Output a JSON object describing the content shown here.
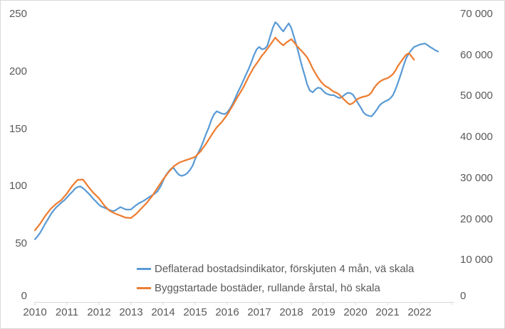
{
  "chart_data": {
    "type": "line",
    "title": "",
    "legend_position": "bottom",
    "grid": false,
    "x_axis": {
      "years": [
        2010,
        2011,
        2012,
        2013,
        2014,
        2015,
        2016,
        2017,
        2018,
        2019,
        2020,
        2021,
        2022
      ],
      "range": [
        2010,
        2023.1
      ]
    },
    "left_axis": {
      "range": [
        0,
        250
      ],
      "ticks": [
        {
          "value": 0,
          "label": "0"
        },
        {
          "value": 50,
          "label": "50"
        },
        {
          "value": 100,
          "label": "100"
        },
        {
          "value": 150,
          "label": "150"
        },
        {
          "value": 200,
          "label": "200"
        },
        {
          "value": 250,
          "label": "250"
        }
      ]
    },
    "right_axis": {
      "range": [
        0,
        70000
      ],
      "ticks": [
        {
          "value": 0,
          "label": "0"
        },
        {
          "value": 10000,
          "label": "10 000"
        },
        {
          "value": 20000,
          "label": "20 000"
        },
        {
          "value": 30000,
          "label": "30 000"
        },
        {
          "value": 40000,
          "label": "40 000"
        },
        {
          "value": 50000,
          "label": "50 000"
        },
        {
          "value": 60000,
          "label": "60 000"
        },
        {
          "value": 70000,
          "label": "70 000"
        }
      ]
    },
    "colors": {
      "blue_series": "#5B9BD5",
      "orange_series": "#ED7D31",
      "axis_line": "#D9D9D9",
      "text": "#595959"
    },
    "series": [
      {
        "name": "Deflaterad bostadsindikator, förskjuten 4 mån, vä skala",
        "axis": "left",
        "color": "#5B9BD5",
        "points": [
          [
            2010.0,
            54
          ],
          [
            2010.08,
            56.5
          ],
          [
            2010.17,
            60
          ],
          [
            2010.25,
            64
          ],
          [
            2010.33,
            68
          ],
          [
            2010.42,
            72
          ],
          [
            2010.5,
            76
          ],
          [
            2010.58,
            79
          ],
          [
            2010.67,
            82
          ],
          [
            2010.75,
            84
          ],
          [
            2010.83,
            86
          ],
          [
            2010.92,
            88
          ],
          [
            2011.0,
            90.5
          ],
          [
            2011.08,
            93
          ],
          [
            2011.17,
            95.5
          ],
          [
            2011.25,
            98
          ],
          [
            2011.33,
            99.5
          ],
          [
            2011.42,
            100
          ],
          [
            2011.5,
            98.5
          ],
          [
            2011.58,
            96.5
          ],
          [
            2011.67,
            94
          ],
          [
            2011.75,
            91.5
          ],
          [
            2011.83,
            89
          ],
          [
            2011.92,
            86.5
          ],
          [
            2012.0,
            84
          ],
          [
            2012.08,
            82.5
          ],
          [
            2012.17,
            81.5
          ],
          [
            2012.25,
            80.5
          ],
          [
            2012.33,
            79.5
          ],
          [
            2012.42,
            78.5
          ],
          [
            2012.5,
            79
          ],
          [
            2012.58,
            80.5
          ],
          [
            2012.67,
            82
          ],
          [
            2012.75,
            81
          ],
          [
            2012.83,
            80
          ],
          [
            2012.92,
            79.8
          ],
          [
            2013.0,
            80
          ],
          [
            2013.08,
            82
          ],
          [
            2013.17,
            84
          ],
          [
            2013.25,
            85.5
          ],
          [
            2013.33,
            86.5
          ],
          [
            2013.42,
            88
          ],
          [
            2013.5,
            89.5
          ],
          [
            2013.58,
            91
          ],
          [
            2013.67,
            92.5
          ],
          [
            2013.75,
            94
          ],
          [
            2013.83,
            96
          ],
          [
            2013.92,
            100
          ],
          [
            2014.0,
            105
          ],
          [
            2014.08,
            109.5
          ],
          [
            2014.17,
            113
          ],
          [
            2014.25,
            115.5
          ],
          [
            2014.33,
            116
          ],
          [
            2014.42,
            112.5
          ],
          [
            2014.5,
            110
          ],
          [
            2014.58,
            109.2
          ],
          [
            2014.67,
            110
          ],
          [
            2014.75,
            111.5
          ],
          [
            2014.83,
            114
          ],
          [
            2014.92,
            118
          ],
          [
            2015.0,
            124
          ],
          [
            2015.08,
            128.5
          ],
          [
            2015.17,
            133.5
          ],
          [
            2015.25,
            139
          ],
          [
            2015.33,
            145
          ],
          [
            2015.42,
            151
          ],
          [
            2015.5,
            157.5
          ],
          [
            2015.58,
            162.5
          ],
          [
            2015.67,
            165.5
          ],
          [
            2015.75,
            164.5
          ],
          [
            2015.83,
            163.5
          ],
          [
            2015.92,
            163
          ],
          [
            2016.0,
            164.5
          ],
          [
            2016.08,
            167.5
          ],
          [
            2016.17,
            172
          ],
          [
            2016.25,
            177
          ],
          [
            2016.33,
            182
          ],
          [
            2016.42,
            187
          ],
          [
            2016.5,
            192
          ],
          [
            2016.58,
            197
          ],
          [
            2016.67,
            202.5
          ],
          [
            2016.75,
            208
          ],
          [
            2016.83,
            214
          ],
          [
            2016.92,
            219.5
          ],
          [
            2017.0,
            221.5
          ],
          [
            2017.08,
            219.5
          ],
          [
            2017.17,
            220
          ],
          [
            2017.25,
            222.5
          ],
          [
            2017.33,
            229.5
          ],
          [
            2017.42,
            238
          ],
          [
            2017.5,
            243
          ],
          [
            2017.58,
            241
          ],
          [
            2017.67,
            237.5
          ],
          [
            2017.75,
            235
          ],
          [
            2017.83,
            238.5
          ],
          [
            2017.92,
            242
          ],
          [
            2018.0,
            238
          ],
          [
            2018.08,
            230.5
          ],
          [
            2018.17,
            222
          ],
          [
            2018.25,
            213.5
          ],
          [
            2018.33,
            205
          ],
          [
            2018.42,
            196.5
          ],
          [
            2018.5,
            188.5
          ],
          [
            2018.58,
            183.5
          ],
          [
            2018.67,
            182
          ],
          [
            2018.75,
            184.5
          ],
          [
            2018.83,
            186
          ],
          [
            2018.92,
            185.5
          ],
          [
            2019.0,
            183
          ],
          [
            2019.08,
            181
          ],
          [
            2019.17,
            180
          ],
          [
            2019.25,
            179.5
          ],
          [
            2019.33,
            179.5
          ],
          [
            2019.42,
            178
          ],
          [
            2019.5,
            177
          ],
          [
            2019.58,
            178
          ],
          [
            2019.67,
            180
          ],
          [
            2019.75,
            181.5
          ],
          [
            2019.83,
            181.5
          ],
          [
            2019.92,
            180
          ],
          [
            2020.0,
            176.5
          ],
          [
            2020.08,
            172.5
          ],
          [
            2020.17,
            168.5
          ],
          [
            2020.25,
            164.5
          ],
          [
            2020.33,
            162.5
          ],
          [
            2020.42,
            161.5
          ],
          [
            2020.5,
            161
          ],
          [
            2020.58,
            163.5
          ],
          [
            2020.67,
            167
          ],
          [
            2020.75,
            170.5
          ],
          [
            2020.83,
            172.5
          ],
          [
            2020.92,
            174
          ],
          [
            2021.0,
            175
          ],
          [
            2021.08,
            176.5
          ],
          [
            2021.17,
            179.5
          ],
          [
            2021.25,
            184.5
          ],
          [
            2021.33,
            190.5
          ],
          [
            2021.42,
            198
          ],
          [
            2021.5,
            205
          ],
          [
            2021.58,
            211.5
          ],
          [
            2021.67,
            216
          ],
          [
            2021.75,
            219
          ],
          [
            2021.83,
            221.5
          ],
          [
            2021.92,
            222.5
          ],
          [
            2022.0,
            223.5
          ],
          [
            2022.08,
            224
          ],
          [
            2022.17,
            224.5
          ],
          [
            2022.25,
            223
          ],
          [
            2022.33,
            221.5
          ],
          [
            2022.42,
            220
          ],
          [
            2022.5,
            218.5
          ],
          [
            2022.58,
            217.5
          ]
        ]
      },
      {
        "name": "Byggstartade bostäder, rullande årstal, hö skala",
        "axis": "right",
        "color": "#ED7D31",
        "points": [
          [
            2010.0,
            17300
          ],
          [
            2010.17,
            19000
          ],
          [
            2010.33,
            20900
          ],
          [
            2010.5,
            22600
          ],
          [
            2010.67,
            23800
          ],
          [
            2010.83,
            24700
          ],
          [
            2011.0,
            26300
          ],
          [
            2011.17,
            28200
          ],
          [
            2011.33,
            29600
          ],
          [
            2011.5,
            29700
          ],
          [
            2011.67,
            27900
          ],
          [
            2011.83,
            26400
          ],
          [
            2012.0,
            25100
          ],
          [
            2012.17,
            23300
          ],
          [
            2012.33,
            22100
          ],
          [
            2012.5,
            21400
          ],
          [
            2012.67,
            20900
          ],
          [
            2012.83,
            20400
          ],
          [
            2013.0,
            20300
          ],
          [
            2013.17,
            21400
          ],
          [
            2013.33,
            22700
          ],
          [
            2013.5,
            24100
          ],
          [
            2013.67,
            25800
          ],
          [
            2013.83,
            27700
          ],
          [
            2014.0,
            29700
          ],
          [
            2014.17,
            31500
          ],
          [
            2014.33,
            32900
          ],
          [
            2014.5,
            33800
          ],
          [
            2014.67,
            34300
          ],
          [
            2014.83,
            34700
          ],
          [
            2015.0,
            35200
          ],
          [
            2015.17,
            36600
          ],
          [
            2015.33,
            38300
          ],
          [
            2015.5,
            40400
          ],
          [
            2015.67,
            42400
          ],
          [
            2015.83,
            43700
          ],
          [
            2016.0,
            45500
          ],
          [
            2016.17,
            47700
          ],
          [
            2016.33,
            49900
          ],
          [
            2016.5,
            52100
          ],
          [
            2016.67,
            54800
          ],
          [
            2016.83,
            57000
          ],
          [
            2017.0,
            58900
          ],
          [
            2017.08,
            59900
          ],
          [
            2017.17,
            60700
          ],
          [
            2017.33,
            62400
          ],
          [
            2017.5,
            64300
          ],
          [
            2017.58,
            63600
          ],
          [
            2017.67,
            62900
          ],
          [
            2017.75,
            62400
          ],
          [
            2017.83,
            63000
          ],
          [
            2017.92,
            63500
          ],
          [
            2018.0,
            63900
          ],
          [
            2018.08,
            63200
          ],
          [
            2018.17,
            62300
          ],
          [
            2018.25,
            61600
          ],
          [
            2018.33,
            61000
          ],
          [
            2018.42,
            60200
          ],
          [
            2018.5,
            59400
          ],
          [
            2018.58,
            58200
          ],
          [
            2018.67,
            56700
          ],
          [
            2018.75,
            55600
          ],
          [
            2018.83,
            54600
          ],
          [
            2018.92,
            53600
          ],
          [
            2019.0,
            52900
          ],
          [
            2019.08,
            52400
          ],
          [
            2019.17,
            52000
          ],
          [
            2019.25,
            51500
          ],
          [
            2019.33,
            51100
          ],
          [
            2019.42,
            50800
          ],
          [
            2019.5,
            50400
          ],
          [
            2019.58,
            49700
          ],
          [
            2019.67,
            49000
          ],
          [
            2019.75,
            48400
          ],
          [
            2019.83,
            48000
          ],
          [
            2019.92,
            48300
          ],
          [
            2020.0,
            48900
          ],
          [
            2020.08,
            49400
          ],
          [
            2020.17,
            49700
          ],
          [
            2020.25,
            49900
          ],
          [
            2020.33,
            50000
          ],
          [
            2020.42,
            50300
          ],
          [
            2020.5,
            50900
          ],
          [
            2020.58,
            52000
          ],
          [
            2020.67,
            52900
          ],
          [
            2020.75,
            53500
          ],
          [
            2020.83,
            53900
          ],
          [
            2020.92,
            54200
          ],
          [
            2021.0,
            54400
          ],
          [
            2021.08,
            54800
          ],
          [
            2021.17,
            55400
          ],
          [
            2021.25,
            56300
          ],
          [
            2021.33,
            57400
          ],
          [
            2021.42,
            58400
          ],
          [
            2021.5,
            59300
          ],
          [
            2021.58,
            60100
          ],
          [
            2021.67,
            60500
          ],
          [
            2021.75,
            59700
          ],
          [
            2021.83,
            58900
          ]
        ]
      }
    ]
  }
}
